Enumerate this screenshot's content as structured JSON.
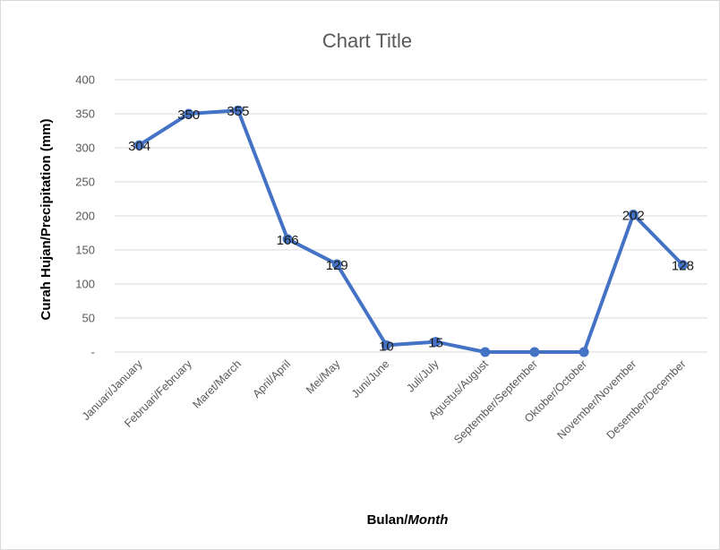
{
  "chart_data": {
    "type": "line",
    "title": "Chart Title",
    "xlabel_main": "Bulan/",
    "xlabel_italic": "Month",
    "ylabel": "Curah Hujan/Precipitation (mm)",
    "categories": [
      "Januari/January",
      "Februari/February",
      "Maret/March",
      "April/April",
      "Mei/May",
      "Juni/June",
      "Juli/July",
      "Agustus/August",
      "September/September",
      "Oktober/October",
      "November/November",
      "Desember/December"
    ],
    "series": [
      {
        "values": [
          304,
          350,
          355,
          166,
          129,
          10,
          15,
          0,
          0,
          0,
          202,
          128
        ],
        "labels": [
          "304",
          "350",
          "355",
          "166",
          "129",
          "10",
          "15",
          "",
          "",
          "",
          "202",
          "128"
        ],
        "color": "#4472C4"
      }
    ],
    "ylim": [
      0,
      400
    ],
    "yticks": [
      0,
      50,
      100,
      150,
      200,
      250,
      300,
      350,
      400
    ],
    "ytick_labels": [
      "-",
      "50",
      "100",
      "150",
      "200",
      "250",
      "300",
      "350",
      "400"
    ],
    "grid": true,
    "gridline_color": "#d9d9d9",
    "legend": "none"
  }
}
